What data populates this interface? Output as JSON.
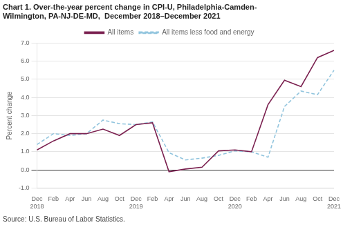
{
  "chart_data": {
    "type": "line",
    "title": [
      "Chart 1. Over-the-year percent change in CPI-U, Philadelphia-Camden-",
      "Wilmington, PA-NJ-DE-MD,  December 2018–December 2021"
    ],
    "ylabel": "Percent change",
    "annotations": [
      "Source: U.S. Bureau of Labor Statistics."
    ],
    "categories": [
      "Dec\n2018",
      "Feb",
      "Apr",
      "Jun",
      "Aug",
      "Oct",
      "Dec\n2019",
      "Feb",
      "Apr",
      "Jun",
      "Aug",
      "Oct",
      "Dec\n2020",
      "Feb",
      "Apr",
      "Jun",
      "Aug",
      "Oct",
      "Dec\n2021"
    ],
    "series": [
      {
        "name": "All items",
        "color": "#7b2150",
        "line_style": "solid",
        "marker": "none",
        "values": [
          1.1,
          1.6,
          2.0,
          2.0,
          2.25,
          1.9,
          2.5,
          2.6,
          -0.1,
          0.05,
          0.15,
          1.05,
          1.1,
          1.0,
          3.6,
          4.95,
          4.6,
          6.2,
          6.6
        ]
      },
      {
        "name": "All items less food and energy",
        "color": "#92c5de",
        "line_style": "dashed",
        "marker": "none",
        "values": [
          1.4,
          2.0,
          1.9,
          2.0,
          2.75,
          2.55,
          2.5,
          2.65,
          0.95,
          0.55,
          0.65,
          0.8,
          1.05,
          1.0,
          0.7,
          3.5,
          4.35,
          4.15,
          5.5
        ]
      }
    ],
    "ylim": [
      -1.0,
      7.0
    ],
    "yticks": [
      {
        "value": -1.0,
        "label": "-1.0"
      },
      {
        "value": 0.0,
        "label": "0.0"
      },
      {
        "value": 1.0,
        "label": "1.0"
      },
      {
        "value": 2.0,
        "label": "2.0"
      },
      {
        "value": 3.0,
        "label": "3.0"
      },
      {
        "value": 4.0,
        "label": "4.0"
      },
      {
        "value": 5.0,
        "label": "5.0"
      },
      {
        "value": 6.0,
        "label": "6.0"
      },
      {
        "value": 7.0,
        "label": "7.0"
      }
    ],
    "grid": "y",
    "legend": "top"
  }
}
